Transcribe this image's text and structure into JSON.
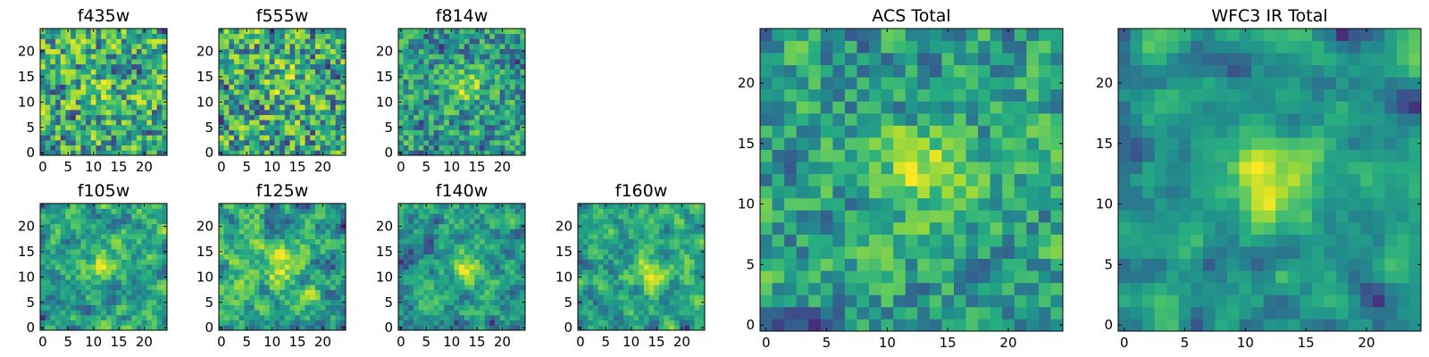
{
  "chart_data": [
    {
      "type": "heatmap",
      "title": "f435w",
      "xticks": [
        0,
        5,
        10,
        15,
        20
      ],
      "yticks": [
        0,
        5,
        10,
        15,
        20
      ],
      "grid_size": [
        25,
        25
      ],
      "colormap": "viridis",
      "seed": 11,
      "peak": [
        12,
        12
      ],
      "peak_strength": 0.15,
      "smooth": 0.25
    },
    {
      "type": "heatmap",
      "title": "f555w",
      "xticks": [
        0,
        5,
        10,
        15,
        20
      ],
      "yticks": [
        0,
        5,
        10,
        15,
        20
      ],
      "grid_size": [
        25,
        25
      ],
      "colormap": "viridis",
      "seed": 23,
      "peak": [
        12,
        14
      ],
      "peak_strength": 0.2,
      "smooth": 0.25
    },
    {
      "type": "heatmap",
      "title": "f814w",
      "xticks": [
        0,
        5,
        10,
        15,
        20
      ],
      "yticks": [
        0,
        5,
        10,
        15,
        20
      ],
      "grid_size": [
        25,
        25
      ],
      "colormap": "viridis",
      "seed": 37,
      "peak": [
        13,
        13
      ],
      "peak_strength": 0.45,
      "smooth": 0.3
    },
    {
      "type": "heatmap",
      "title": "f105w",
      "xticks": [
        0,
        5,
        10,
        15,
        20
      ],
      "yticks": [
        0,
        5,
        10,
        15,
        20
      ],
      "grid_size": [
        25,
        25
      ],
      "colormap": "viridis",
      "seed": 41,
      "peak": [
        12,
        13
      ],
      "peak_strength": 0.35,
      "smooth": 0.7
    },
    {
      "type": "heatmap",
      "title": "f125w",
      "xticks": [
        0,
        5,
        10,
        15,
        20
      ],
      "yticks": [
        0,
        5,
        10,
        15,
        20
      ],
      "grid_size": [
        25,
        25
      ],
      "colormap": "viridis",
      "seed": 53,
      "peak": [
        12,
        12
      ],
      "peak_strength": 0.3,
      "smooth": 0.7
    },
    {
      "type": "heatmap",
      "title": "f140w",
      "xticks": [
        0,
        5,
        10,
        15,
        20
      ],
      "yticks": [
        0,
        5,
        10,
        15,
        20
      ],
      "grid_size": [
        25,
        25
      ],
      "colormap": "viridis",
      "seed": 67,
      "peak": [
        13,
        12
      ],
      "peak_strength": 0.35,
      "smooth": 0.7
    },
    {
      "type": "heatmap",
      "title": "f160w",
      "xticks": [
        0,
        5,
        10,
        15,
        20
      ],
      "yticks": [
        0,
        5,
        10,
        15,
        20
      ],
      "grid_size": [
        25,
        25
      ],
      "colormap": "viridis",
      "seed": 79,
      "peak": [
        14,
        11
      ],
      "peak_strength": 0.4,
      "smooth": 0.7
    },
    {
      "type": "heatmap",
      "title": "ACS Total",
      "xticks": [
        0,
        5,
        10,
        15,
        20
      ],
      "yticks": [
        0,
        5,
        10,
        15,
        20
      ],
      "grid_size": [
        25,
        25
      ],
      "colormap": "viridis",
      "seed": 97,
      "peak": [
        13,
        13
      ],
      "peak_strength": 0.5,
      "smooth": 0.45
    },
    {
      "type": "heatmap",
      "title": "WFC3 IR Total",
      "xticks": [
        0,
        5,
        10,
        15,
        20
      ],
      "yticks": [
        0,
        5,
        10,
        15,
        20
      ],
      "grid_size": [
        25,
        25
      ],
      "colormap": "viridis",
      "seed": 113,
      "peak": [
        12,
        12
      ],
      "peak_strength": 0.5,
      "smooth": 0.85
    }
  ]
}
